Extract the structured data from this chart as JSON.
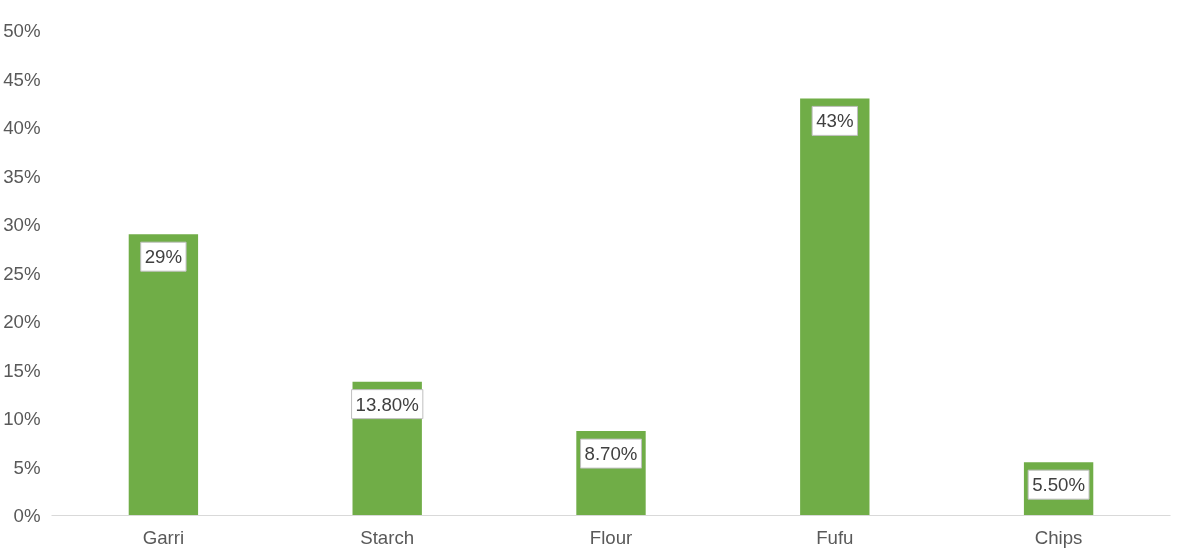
{
  "chart_data": {
    "type": "bar",
    "categories": [
      "Garri",
      "Starch",
      "Flour",
      "Fufu",
      "Chips"
    ],
    "values": [
      29,
      13.8,
      8.7,
      43,
      5.5
    ],
    "color": "#70ad47",
    "value_labels": [
      "29%",
      "13.80%",
      "8.70%",
      "43%",
      "5.50%"
    ],
    "ylim": [
      0,
      50
    ],
    "yticks": [
      {
        "value": 0,
        "label": "0%"
      },
      {
        "value": 5,
        "label": "5%"
      },
      {
        "value": 10,
        "label": "10%"
      },
      {
        "value": 15,
        "label": "15%"
      },
      {
        "value": 20,
        "label": "20%"
      },
      {
        "value": 25,
        "label": "25%"
      },
      {
        "value": 30,
        "label": "30%"
      },
      {
        "value": 35,
        "label": "35%"
      },
      {
        "value": 40,
        "label": "40%"
      },
      {
        "value": 45,
        "label": "45%"
      },
      {
        "value": 50,
        "label": "50%"
      }
    ],
    "grid": false
  }
}
